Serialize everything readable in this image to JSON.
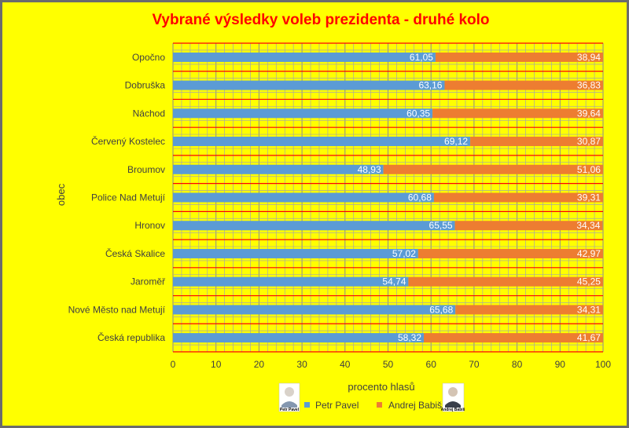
{
  "chart_data": {
    "type": "bar",
    "orientation": "horizontal",
    "stacked": true,
    "title": "Vybrané výsledky voleb prezidenta - druhé kolo",
    "xlabel": "procento hlasů",
    "ylabel": "obec",
    "xlim": [
      0,
      100
    ],
    "xticks": [
      0,
      10,
      20,
      30,
      40,
      50,
      60,
      70,
      80,
      90,
      100
    ],
    "grid": true,
    "legend_position": "bottom",
    "categories": [
      "Opočno",
      "Dobruška",
      "Náchod",
      "Červený Kostelec",
      "Broumov",
      "Police Nad Metují",
      "Hronov",
      "Česká Skalice",
      "Jaroměř",
      "Nové Město nad Metují",
      "Česká republika"
    ],
    "series": [
      {
        "name": "Petr Pavel",
        "color": "#5b9bd5",
        "values": [
          61.05,
          63.16,
          60.35,
          69.12,
          48.93,
          60.68,
          65.55,
          57.02,
          54.74,
          65.68,
          58.32
        ],
        "labels": [
          "61,05",
          "63,16",
          "60,35",
          "69,12",
          "48,93",
          "60,68",
          "65,55",
          "57,02",
          "54,74",
          "65,68",
          "58,32"
        ]
      },
      {
        "name": "Andrej Babiš",
        "color": "#ed7d31",
        "values": [
          38.94,
          36.83,
          39.64,
          30.87,
          51.06,
          39.31,
          34.34,
          42.97,
          45.25,
          34.31,
          41.67
        ],
        "labels": [
          "38,94",
          "36,83",
          "39,64",
          "30,87",
          "51,06",
          "39,31",
          "34,34",
          "42,97",
          "45,25",
          "34,31",
          "41,67"
        ]
      }
    ]
  },
  "legend": {
    "photo_captions": [
      "Petr Pavel",
      "Andrej Babiš"
    ]
  },
  "colors": {
    "background": "#ffff00",
    "title": "#ff0000",
    "grid": "#a6a6a6",
    "row_separator": "#ff0000",
    "value_label": "#ffffff"
  }
}
